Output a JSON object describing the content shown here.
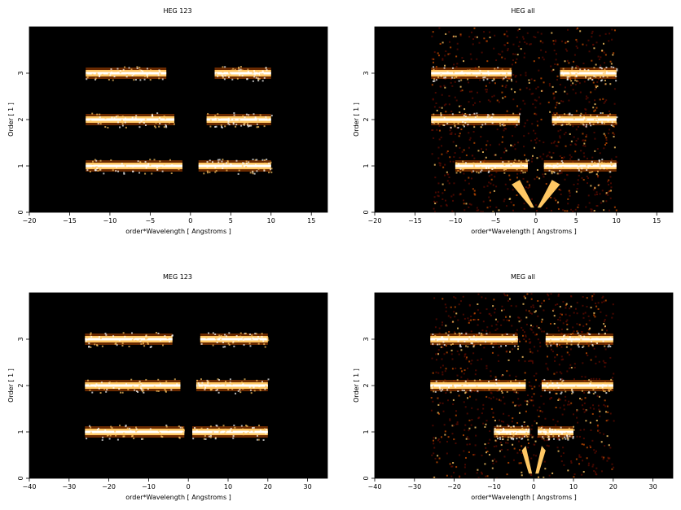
{
  "chart_data": [
    {
      "type": "heatmap",
      "title": "HEG 123",
      "xlabel": "order*Wavelength [ Angstroms ]",
      "ylabel": "Order [ 1 ]",
      "xlim": [
        -20,
        17
      ],
      "ylim": [
        0,
        4
      ],
      "xticks": [
        -20,
        -15,
        -10,
        -5,
        0,
        5,
        10,
        15
      ],
      "yticks": [
        0,
        1,
        2,
        3
      ],
      "colormap": [
        "#000000",
        "#5a0a00",
        "#c04a00",
        "#ffc864",
        "#ffffff"
      ],
      "bands": [
        {
          "order": 1,
          "segments": [
            [
              -13,
              -1
            ],
            [
              1,
              10
            ]
          ]
        },
        {
          "order": 2,
          "segments": [
            [
              -13,
              -2
            ],
            [
              2,
              10
            ]
          ]
        },
        {
          "order": 3,
          "segments": [
            [
              -13,
              -3
            ],
            [
              3,
              10
            ]
          ]
        }
      ]
    },
    {
      "type": "heatmap",
      "title": "HEG all",
      "xlabel": "order*Wavelength [ Angstroms ]",
      "ylabel": "Order [ 1 ]",
      "xlim": [
        -20,
        17
      ],
      "ylim": [
        0,
        4
      ],
      "xticks": [
        -20,
        -15,
        -10,
        -5,
        0,
        5,
        10,
        15
      ],
      "yticks": [
        0,
        1,
        2,
        3
      ],
      "colormap": [
        "#000000",
        "#5a0a00",
        "#c04a00",
        "#ffc864",
        "#ffffff"
      ],
      "bands": [
        {
          "order": 1,
          "segments": [
            [
              -10,
              -1
            ],
            [
              1,
              10
            ]
          ]
        },
        {
          "order": 2,
          "segments": [
            [
              -13,
              -2
            ],
            [
              2,
              10
            ]
          ]
        },
        {
          "order": 3,
          "segments": [
            [
              -13,
              -3
            ],
            [
              3,
              10
            ]
          ]
        }
      ]
    },
    {
      "type": "heatmap",
      "title": "MEG 123",
      "xlabel": "order*Wavelength [ Angstroms ]",
      "ylabel": "Order [ 1 ]",
      "xlim": [
        -40,
        35
      ],
      "ylim": [
        0,
        4
      ],
      "xticks": [
        -40,
        -30,
        -20,
        -10,
        0,
        10,
        20,
        30
      ],
      "yticks": [
        0,
        1,
        2,
        3
      ],
      "colormap": [
        "#000000",
        "#5a0a00",
        "#c04a00",
        "#ffc864",
        "#ffffff"
      ],
      "bands": [
        {
          "order": 1,
          "segments": [
            [
              -26,
              -1
            ],
            [
              1,
              20
            ]
          ]
        },
        {
          "order": 2,
          "segments": [
            [
              -26,
              -2
            ],
            [
              2,
              20
            ]
          ]
        },
        {
          "order": 3,
          "segments": [
            [
              -26,
              -4
            ],
            [
              3,
              20
            ]
          ]
        }
      ]
    },
    {
      "type": "heatmap",
      "title": "MEG all",
      "xlabel": "order*Wavelength [ Angstroms ]",
      "ylabel": "Order [ 1 ]",
      "xlim": [
        -40,
        35
      ],
      "ylim": [
        0,
        4
      ],
      "xticks": [
        -40,
        -30,
        -20,
        -10,
        0,
        10,
        20,
        30
      ],
      "yticks": [
        0,
        1,
        2,
        3
      ],
      "colormap": [
        "#000000",
        "#5a0a00",
        "#c04a00",
        "#ffc864",
        "#ffffff"
      ],
      "bands": [
        {
          "order": 1,
          "segments": [
            [
              -10,
              -1
            ],
            [
              1,
              10
            ]
          ]
        },
        {
          "order": 2,
          "segments": [
            [
              -26,
              -2
            ],
            [
              2,
              20
            ]
          ]
        },
        {
          "order": 3,
          "segments": [
            [
              -26,
              -4
            ],
            [
              3,
              20
            ]
          ]
        }
      ]
    }
  ]
}
